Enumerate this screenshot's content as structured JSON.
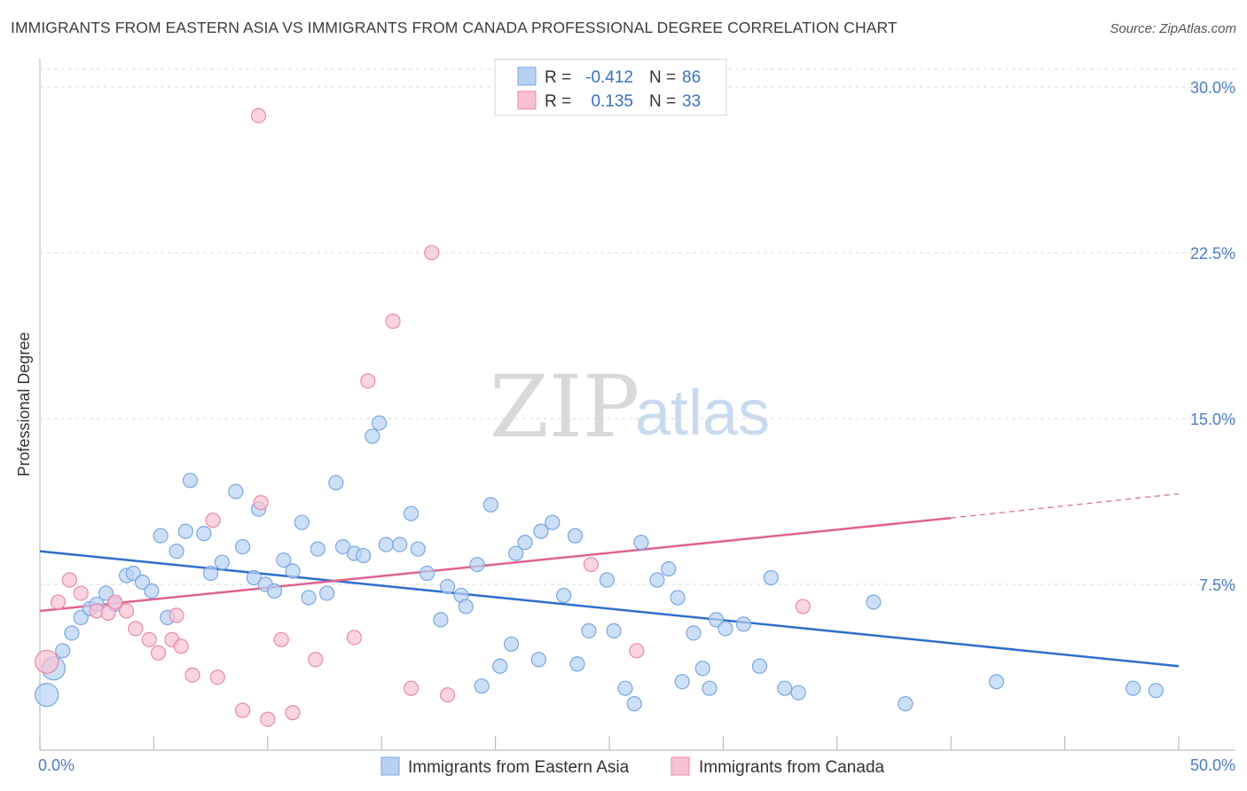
{
  "header": {
    "title": "IMMIGRANTS FROM EASTERN ASIA VS IMMIGRANTS FROM CANADA PROFESSIONAL DEGREE CORRELATION CHART",
    "source": "Source: ZipAtlas.com"
  },
  "watermark": {
    "zip": "ZIP",
    "atlas": "atlas"
  },
  "legend": {
    "rows": [
      {
        "r_label": "R =",
        "r_value": "-0.412",
        "n_label": "N =",
        "n_value": "86"
      },
      {
        "r_label": "R =",
        "r_value": "0.135",
        "n_label": "N =",
        "n_value": "33"
      }
    ]
  },
  "colors": {
    "series_blue_fill": "#b8d1f3",
    "series_blue_stroke": "#7aa6df",
    "trend_blue": "#2f6fce",
    "series_pink_fill": "#f8c2d3",
    "series_pink_stroke": "#e88aa9",
    "trend_pink": "#e0628f",
    "tick_text": "#4a7cc4",
    "grid": "#d8d8d8"
  },
  "chart_data": {
    "type": "scatter",
    "title": "IMMIGRANTS FROM EASTERN ASIA VS IMMIGRANTS FROM CANADA PROFESSIONAL DEGREE CORRELATION CHART",
    "xlabel": "",
    "ylabel": "Professional Degree",
    "xlim": [
      0,
      50
    ],
    "ylim": [
      0,
      30.8
    ],
    "x_tick_labels": [
      "0.0%",
      "50.0%"
    ],
    "y_ticks": [
      7.5,
      15.0,
      22.5,
      30.0
    ],
    "y_tick_labels": [
      "7.5%",
      "15.0%",
      "22.5%",
      "30.0%"
    ],
    "grid": true,
    "legend_position": "top-center",
    "series": [
      {
        "name": "Immigrants from Eastern Asia",
        "r": -0.412,
        "n": 86,
        "trend": {
          "x": [
            0,
            50
          ],
          "y": [
            9.0,
            3.8
          ]
        },
        "points": [
          [
            0.3,
            2.5
          ],
          [
            0.6,
            3.7
          ],
          [
            1.0,
            4.5
          ],
          [
            1.4,
            5.3
          ],
          [
            1.8,
            6.0
          ],
          [
            2.2,
            6.4
          ],
          [
            2.5,
            6.6
          ],
          [
            2.9,
            7.1
          ],
          [
            3.3,
            6.6
          ],
          [
            3.8,
            7.9
          ],
          [
            4.1,
            8.0
          ],
          [
            4.5,
            7.6
          ],
          [
            4.9,
            7.2
          ],
          [
            5.3,
            9.7
          ],
          [
            5.6,
            6.0
          ],
          [
            6.0,
            9.0
          ],
          [
            6.4,
            9.9
          ],
          [
            6.6,
            12.2
          ],
          [
            7.2,
            9.8
          ],
          [
            7.5,
            8.0
          ],
          [
            8.0,
            8.5
          ],
          [
            8.6,
            11.7
          ],
          [
            8.9,
            9.2
          ],
          [
            9.4,
            7.8
          ],
          [
            9.6,
            10.9
          ],
          [
            9.9,
            7.5
          ],
          [
            10.3,
            7.2
          ],
          [
            10.7,
            8.6
          ],
          [
            11.1,
            8.1
          ],
          [
            11.5,
            10.3
          ],
          [
            11.8,
            6.9
          ],
          [
            12.2,
            9.1
          ],
          [
            12.6,
            7.1
          ],
          [
            13.0,
            12.1
          ],
          [
            13.3,
            9.2
          ],
          [
            13.8,
            8.9
          ],
          [
            14.2,
            8.8
          ],
          [
            14.6,
            14.2
          ],
          [
            14.9,
            14.8
          ],
          [
            15.2,
            9.3
          ],
          [
            15.8,
            9.3
          ],
          [
            16.3,
            10.7
          ],
          [
            16.6,
            9.1
          ],
          [
            17.0,
            8.0
          ],
          [
            17.6,
            5.9
          ],
          [
            17.9,
            7.4
          ],
          [
            18.5,
            7.0
          ],
          [
            18.7,
            6.5
          ],
          [
            19.2,
            8.4
          ],
          [
            19.4,
            2.9
          ],
          [
            19.8,
            11.1
          ],
          [
            20.2,
            3.8
          ],
          [
            20.7,
            4.8
          ],
          [
            20.9,
            8.9
          ],
          [
            21.3,
            9.4
          ],
          [
            21.9,
            4.1
          ],
          [
            22.0,
            9.9
          ],
          [
            22.5,
            10.3
          ],
          [
            23.0,
            7.0
          ],
          [
            23.5,
            9.7
          ],
          [
            23.6,
            3.9
          ],
          [
            24.1,
            5.4
          ],
          [
            24.9,
            7.7
          ],
          [
            25.2,
            5.4
          ],
          [
            25.7,
            2.8
          ],
          [
            26.1,
            2.1
          ],
          [
            26.4,
            9.4
          ],
          [
            27.1,
            7.7
          ],
          [
            27.6,
            8.2
          ],
          [
            28.0,
            6.9
          ],
          [
            28.2,
            3.1
          ],
          [
            28.7,
            5.3
          ],
          [
            29.1,
            3.7
          ],
          [
            29.4,
            2.8
          ],
          [
            29.7,
            5.9
          ],
          [
            30.1,
            5.5
          ],
          [
            30.9,
            5.7
          ],
          [
            31.6,
            3.8
          ],
          [
            32.1,
            7.8
          ],
          [
            32.7,
            2.8
          ],
          [
            33.3,
            2.6
          ],
          [
            36.6,
            6.7
          ],
          [
            38.0,
            2.1
          ],
          [
            42.0,
            3.1
          ],
          [
            48.0,
            2.8
          ],
          [
            49.0,
            2.7
          ]
        ]
      },
      {
        "name": "Immigrants from Canada",
        "r": 0.135,
        "n": 33,
        "trend": {
          "x": [
            0,
            40,
            50
          ],
          "y": [
            6.3,
            10.5,
            11.6
          ]
        },
        "points": [
          [
            0.3,
            4.0
          ],
          [
            0.8,
            6.7
          ],
          [
            1.3,
            7.7
          ],
          [
            1.8,
            7.1
          ],
          [
            2.5,
            6.3
          ],
          [
            3.0,
            6.2
          ],
          [
            3.3,
            6.7
          ],
          [
            3.8,
            6.3
          ],
          [
            4.2,
            5.5
          ],
          [
            4.8,
            5.0
          ],
          [
            5.2,
            4.4
          ],
          [
            5.8,
            5.0
          ],
          [
            6.0,
            6.1
          ],
          [
            6.2,
            4.7
          ],
          [
            6.7,
            3.4
          ],
          [
            7.6,
            10.4
          ],
          [
            7.8,
            3.3
          ],
          [
            8.9,
            1.8
          ],
          [
            9.6,
            28.7
          ],
          [
            9.7,
            11.2
          ],
          [
            10.0,
            1.4
          ],
          [
            10.6,
            5.0
          ],
          [
            11.1,
            1.7
          ],
          [
            12.1,
            4.1
          ],
          [
            13.8,
            5.1
          ],
          [
            14.4,
            16.7
          ],
          [
            15.5,
            19.4
          ],
          [
            16.3,
            2.8
          ],
          [
            17.2,
            22.5
          ],
          [
            17.9,
            2.5
          ],
          [
            24.2,
            8.4
          ],
          [
            26.2,
            4.5
          ],
          [
            33.5,
            6.5
          ]
        ]
      }
    ]
  },
  "bottom_legend": {
    "items": [
      {
        "label": "Immigrants from Eastern Asia"
      },
      {
        "label": "Immigrants from Canada"
      }
    ]
  }
}
